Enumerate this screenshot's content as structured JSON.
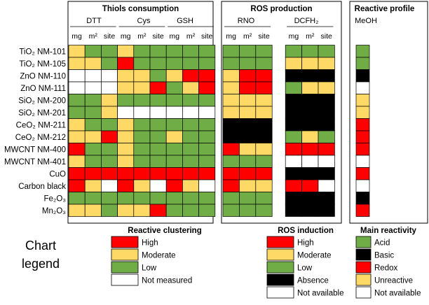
{
  "chart_data": {
    "type": "heatmap",
    "rows": [
      "TiO₂ NM-101",
      "TiO₂ NM-105",
      "ZnO NM-110",
      "ZnO NM-111",
      "SiO₂ NM-200",
      "SiO₂ NM-201",
      "CeO₂ NM-211",
      "CeO₂ NM-212",
      "MWCNT NM-400",
      "MWCNT NM-401",
      "CuO",
      "Carbon black",
      "Fe₂O₃",
      "Mn₂O₃"
    ],
    "panels": [
      {
        "id": "thiols",
        "title": "Thiols consumption",
        "groups": [
          {
            "label": "DTT",
            "columns": [
              "mg",
              "m²",
              "site"
            ]
          },
          {
            "label": "Cys",
            "columns": [
              "mg",
              "m²",
              "site"
            ]
          },
          {
            "label": "GSH",
            "columns": [
              "mg",
              "m²",
              "site"
            ]
          }
        ],
        "values": [
          [
            "M",
            "L",
            "L",
            "M",
            "L",
            "L",
            "L",
            "L",
            "L"
          ],
          [
            "M",
            "M",
            "L",
            "H",
            "L",
            "L",
            "L",
            "L",
            "L"
          ],
          [
            "W",
            "W",
            "W",
            "M",
            "M",
            "L",
            "M",
            "H",
            "H"
          ],
          [
            "W",
            "W",
            "W",
            "M",
            "M",
            "H",
            "L",
            "M",
            "H"
          ],
          [
            "L",
            "L",
            "M",
            "L",
            "L",
            "L",
            "L",
            "L",
            "L"
          ],
          [
            "L",
            "L",
            "M",
            "W",
            "W",
            "W",
            "W",
            "W",
            "W"
          ],
          [
            "M",
            "L",
            "L",
            "M",
            "L",
            "L",
            "L",
            "L",
            "L"
          ],
          [
            "M",
            "M",
            "H",
            "M",
            "L",
            "L",
            "M",
            "L",
            "L"
          ],
          [
            "H",
            "L",
            "L",
            "M",
            "L",
            "L",
            "L",
            "L",
            "L"
          ],
          [
            "M",
            "L",
            "L",
            "M",
            "L",
            "L",
            "L",
            "L",
            "L"
          ],
          [
            "H",
            "H",
            "H",
            "H",
            "H",
            "H",
            "H",
            "H",
            "H"
          ],
          [
            "H",
            "M",
            "W",
            "H",
            "M",
            "W",
            "H",
            "M",
            "W"
          ],
          [
            "L",
            "L",
            "L",
            "L",
            "L",
            "L",
            "L",
            "L",
            "L"
          ],
          [
            "M",
            "M",
            "L",
            "M",
            "M",
            "H",
            "L",
            "L",
            "L"
          ]
        ]
      },
      {
        "id": "ros",
        "title": "ROS production",
        "groups": [
          {
            "label": "RNO",
            "columns": [
              "mg",
              "m²",
              "site"
            ]
          },
          {
            "label": "DCFH₂",
            "columns": [
              "mg",
              "m²",
              "site"
            ]
          }
        ],
        "values": [
          [
            "L",
            "L",
            "L",
            "L",
            "L",
            "L"
          ],
          [
            "L",
            "L",
            "L",
            "M",
            "M",
            "M"
          ],
          [
            "M",
            "H",
            "H",
            "A",
            "A",
            "A"
          ],
          [
            "M",
            "H",
            "H",
            "L",
            "M",
            "M"
          ],
          [
            "M",
            "M",
            "M",
            "A",
            "A",
            "A"
          ],
          [
            "M",
            "M",
            "M",
            "A",
            "A",
            "A"
          ],
          [
            "A",
            "A",
            "A",
            "A",
            "A",
            "A"
          ],
          [
            "A",
            "A",
            "A",
            "L",
            "M",
            "L"
          ],
          [
            "H",
            "M",
            "M",
            "H",
            "H",
            "H"
          ],
          [
            "L",
            "L",
            "L",
            "N",
            "N",
            "N"
          ],
          [
            "H",
            "H",
            "H",
            "A",
            "A",
            "A"
          ],
          [
            "H",
            "M",
            "M",
            "H",
            "H",
            "N"
          ],
          [
            "L",
            "L",
            "L",
            "A",
            "A",
            "A"
          ],
          [
            "L",
            "L",
            "L",
            "A",
            "A",
            "A"
          ]
        ]
      },
      {
        "id": "profile",
        "title": "Reactive profile",
        "groups": [
          {
            "label": "MeOH",
            "columns": [
              ""
            ]
          }
        ],
        "values": [
          [
            "C"
          ],
          [
            "C"
          ],
          [
            "B"
          ],
          [
            "X"
          ],
          [
            "U"
          ],
          [
            "U"
          ],
          [
            "R"
          ],
          [
            "R"
          ],
          [
            "R"
          ],
          [
            "X"
          ],
          [
            "R"
          ],
          [
            "X"
          ],
          [
            "B"
          ],
          [
            "R"
          ]
        ]
      }
    ],
    "legends": [
      {
        "title": "Reactive clustering",
        "items": [
          {
            "key": "H",
            "label": "High"
          },
          {
            "key": "M",
            "label": "Moderate"
          },
          {
            "key": "L",
            "label": "Low"
          },
          {
            "key": "W",
            "label": "Not measured"
          }
        ]
      },
      {
        "title": "ROS induction",
        "items": [
          {
            "key": "H",
            "label": "High"
          },
          {
            "key": "M",
            "label": "Moderate"
          },
          {
            "key": "L",
            "label": "Low"
          },
          {
            "key": "A",
            "label": "Absence"
          },
          {
            "key": "N",
            "label": "Not available"
          }
        ]
      },
      {
        "title": "Main reactivity",
        "items": [
          {
            "key": "C",
            "label": "Acid"
          },
          {
            "key": "B",
            "label": "Basic"
          },
          {
            "key": "R",
            "label": "Redox"
          },
          {
            "key": "U",
            "label": "Unreactive"
          },
          {
            "key": "X",
            "label": "Not available"
          }
        ]
      }
    ],
    "legend_caption": [
      "Chart",
      "legend"
    ],
    "colors": {
      "H": "#ff0000",
      "M": "#ffd966",
      "L": "#70ad47",
      "W": "#ffffff",
      "A": "#000000",
      "N": "#ffffff",
      "C": "#70ad47",
      "B": "#000000",
      "R": "#ff0000",
      "U": "#ffd966",
      "X": "#ffffff"
    }
  }
}
